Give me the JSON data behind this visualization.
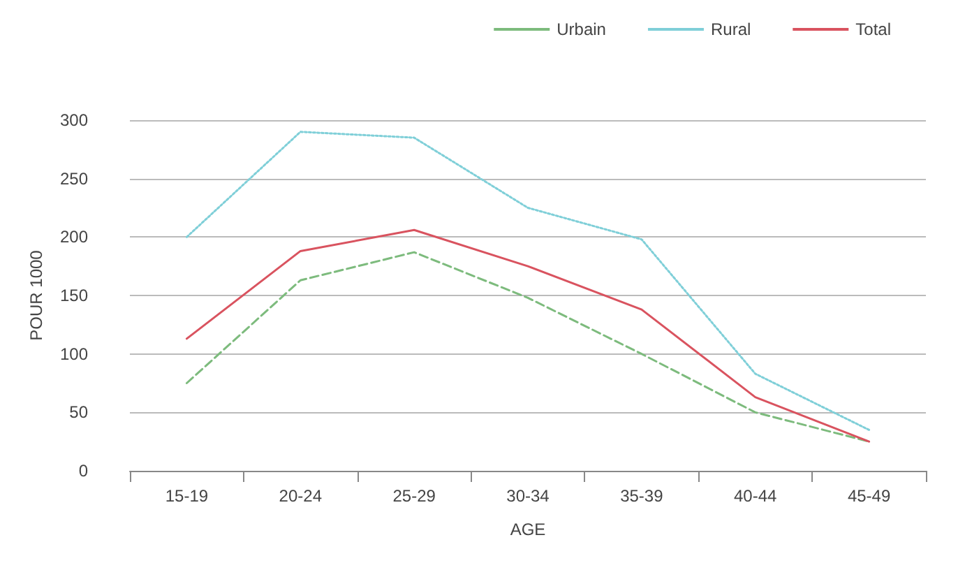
{
  "chart_data": {
    "type": "line",
    "xlabel": "AGE",
    "ylabel": "POUR 1000",
    "categories": [
      "15-19",
      "20-24",
      "25-29",
      "30-34",
      "35-39",
      "40-44",
      "45-49"
    ],
    "series": [
      {
        "name": "Urbain",
        "color": "#7dbb7d",
        "line_style": "dashed",
        "values": [
          75,
          163,
          187,
          148,
          100,
          50,
          25
        ]
      },
      {
        "name": "Rural",
        "color": "#7fcfd8",
        "line_style": "dotted",
        "values": [
          200,
          290,
          285,
          225,
          198,
          83,
          35
        ]
      },
      {
        "name": "Total",
        "color": "#d9535f",
        "line_style": "solid",
        "values": [
          113,
          188,
          206,
          175,
          138,
          63,
          25
        ]
      }
    ],
    "ylim": [
      0,
      300
    ],
    "yticks": [
      0,
      50,
      100,
      150,
      200,
      250,
      300
    ],
    "grid": "y",
    "legend": "top right",
    "marker": "none"
  }
}
